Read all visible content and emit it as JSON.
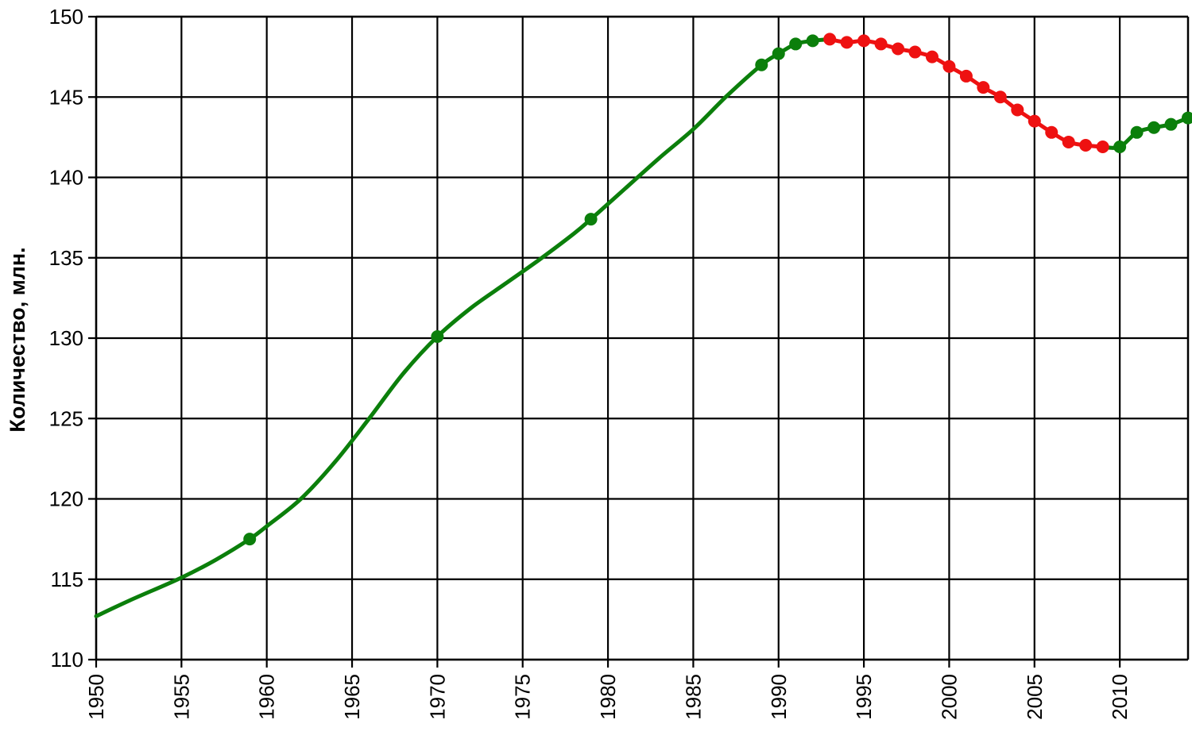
{
  "chart_data": {
    "type": "line",
    "title": "",
    "xlabel": "",
    "ylabel": "Количество, млн.",
    "xlim": [
      1950,
      2014
    ],
    "ylim": [
      110,
      150
    ],
    "grid": true,
    "x_ticks": [
      "1950",
      "1955",
      "1960",
      "1965",
      "1970",
      "1975",
      "1980",
      "1985",
      "1990",
      "1995",
      "2000",
      "2005",
      "2010"
    ],
    "y_ticks": [
      "110",
      "115",
      "120",
      "125",
      "130",
      "135",
      "140",
      "145",
      "150"
    ],
    "colors": {
      "growth": "#0b7f0b",
      "decline": "#ee1111"
    },
    "curve": [
      [
        1950,
        112.7
      ],
      [
        1952,
        113.7
      ],
      [
        1955,
        115.1
      ],
      [
        1957,
        116.2
      ],
      [
        1959,
        117.5
      ],
      [
        1960,
        118.3
      ],
      [
        1962,
        120.0
      ],
      [
        1964,
        122.3
      ],
      [
        1966,
        125.0
      ],
      [
        1968,
        127.8
      ],
      [
        1970,
        130.1
      ],
      [
        1972,
        131.9
      ],
      [
        1974,
        133.4
      ],
      [
        1976,
        134.9
      ],
      [
        1978,
        136.5
      ],
      [
        1979,
        137.4
      ],
      [
        1981,
        139.3
      ],
      [
        1983,
        141.2
      ],
      [
        1985,
        143.0
      ],
      [
        1987,
        145.1
      ],
      [
        1989,
        147.0
      ],
      [
        1990,
        147.7
      ],
      [
        1991,
        148.3
      ],
      [
        1992,
        148.5
      ],
      [
        1993,
        148.6
      ],
      [
        1994,
        148.4
      ],
      [
        1995,
        148.5
      ],
      [
        1996,
        148.3
      ],
      [
        1997,
        148.0
      ],
      [
        1998,
        147.8
      ],
      [
        1999,
        147.5
      ],
      [
        2000,
        146.9
      ],
      [
        2001,
        146.3
      ],
      [
        2002,
        145.6
      ],
      [
        2003,
        145.0
      ],
      [
        2004,
        144.2
      ],
      [
        2005,
        143.5
      ],
      [
        2006,
        142.8
      ],
      [
        2007,
        142.2
      ],
      [
        2008,
        142.0
      ],
      [
        2009,
        141.9
      ],
      [
        2010,
        141.9
      ],
      [
        2011,
        142.8
      ],
      [
        2012,
        143.1
      ],
      [
        2013,
        143.3
      ],
      [
        2014,
        143.7
      ]
    ],
    "segments": [
      {
        "trend": "growth",
        "from": 1950,
        "to": 1993
      },
      {
        "trend": "decline",
        "from": 1993,
        "to": 2009
      },
      {
        "trend": "growth",
        "from": 2009,
        "to": 2014
      }
    ],
    "markers": [
      [
        1959,
        117.5,
        "growth"
      ],
      [
        1970,
        130.1,
        "growth"
      ],
      [
        1979,
        137.4,
        "growth"
      ],
      [
        1989,
        147.0,
        "growth"
      ],
      [
        1990,
        147.7,
        "growth"
      ],
      [
        1991,
        148.3,
        "growth"
      ],
      [
        1992,
        148.5,
        "growth"
      ],
      [
        1993,
        148.6,
        "decline"
      ],
      [
        1994,
        148.4,
        "decline"
      ],
      [
        1995,
        148.5,
        "decline"
      ],
      [
        1996,
        148.3,
        "decline"
      ],
      [
        1997,
        148.0,
        "decline"
      ],
      [
        1998,
        147.8,
        "decline"
      ],
      [
        1999,
        147.5,
        "decline"
      ],
      [
        2000,
        146.9,
        "decline"
      ],
      [
        2001,
        146.3,
        "decline"
      ],
      [
        2002,
        145.6,
        "decline"
      ],
      [
        2003,
        145.0,
        "decline"
      ],
      [
        2004,
        144.2,
        "decline"
      ],
      [
        2005,
        143.5,
        "decline"
      ],
      [
        2006,
        142.8,
        "decline"
      ],
      [
        2007,
        142.2,
        "decline"
      ],
      [
        2008,
        142.0,
        "decline"
      ],
      [
        2009,
        141.9,
        "decline"
      ],
      [
        2010,
        141.9,
        "growth"
      ],
      [
        2011,
        142.8,
        "growth"
      ],
      [
        2012,
        143.1,
        "growth"
      ],
      [
        2013,
        143.3,
        "growth"
      ],
      [
        2014,
        143.7,
        "growth"
      ]
    ]
  }
}
